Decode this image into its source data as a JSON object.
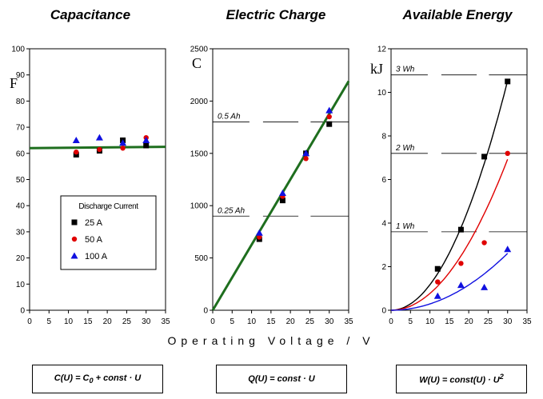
{
  "x_axis_label": "Operating Voltage   /  V",
  "legend": {
    "title": "Discharge Current",
    "entries": [
      {
        "label": "25 A",
        "color": "#000000",
        "marker": "square"
      },
      {
        "label": "50 A",
        "color": "#e00000",
        "marker": "circle"
      },
      {
        "label": "100 A",
        "color": "#1010e0",
        "marker": "triangle"
      }
    ]
  },
  "formulas": [
    {
      "text": "C(U) = C0 + const · U"
    },
    {
      "text": "Q(U) = const · U"
    },
    {
      "text": "W(U) = const(U) · U2"
    }
  ],
  "chart_data": [
    {
      "type": "scatter",
      "title": "Capacitance",
      "ylabel": "F",
      "xlim": [
        0,
        35
      ],
      "ylim": [
        0,
        100
      ],
      "xticks": [
        0,
        5,
        10,
        15,
        20,
        25,
        30,
        35
      ],
      "yticks": [
        0,
        10,
        20,
        30,
        40,
        50,
        60,
        70,
        80,
        90,
        100
      ],
      "series": [
        {
          "name": "25 A",
          "x": [
            12,
            18,
            24,
            30
          ],
          "y": [
            59.5,
            61,
            65,
            63
          ]
        },
        {
          "name": "50 A",
          "x": [
            12,
            18,
            24,
            30
          ],
          "y": [
            60.5,
            61.5,
            62,
            66
          ]
        },
        {
          "name": "100 A",
          "x": [
            12,
            18,
            24,
            30
          ],
          "y": [
            65,
            66,
            64,
            65
          ]
        }
      ],
      "fit_line": {
        "x": [
          0,
          35
        ],
        "y": [
          62,
          62.5
        ],
        "color": "#1e6e1e"
      }
    },
    {
      "type": "scatter",
      "title": "Electric Charge",
      "ylabel": "C",
      "xlim": [
        0,
        35
      ],
      "ylim": [
        0,
        2500
      ],
      "xticks": [
        0,
        5,
        10,
        15,
        20,
        25,
        30,
        35
      ],
      "yticks": [
        0,
        500,
        1000,
        1500,
        2000,
        2500
      ],
      "series": [
        {
          "name": "25 A",
          "x": [
            12,
            18,
            24,
            30
          ],
          "y": [
            680,
            1050,
            1500,
            1780
          ]
        },
        {
          "name": "50 A",
          "x": [
            12,
            18,
            24,
            30
          ],
          "y": [
            700,
            1090,
            1450,
            1850
          ]
        },
        {
          "name": "100 A",
          "x": [
            12,
            18,
            24,
            30
          ],
          "y": [
            740,
            1120,
            1500,
            1910
          ]
        }
      ],
      "fit_line": {
        "x": [
          0,
          35
        ],
        "y": [
          0,
          2190
        ],
        "color": "#1e6e1e"
      },
      "reference_lines": [
        {
          "label": "0.5 Ah",
          "value": 1800
        },
        {
          "label": "0.25 Ah",
          "value": 900
        }
      ]
    },
    {
      "type": "scatter",
      "title": "Available Energy",
      "ylabel": "kJ",
      "xlim": [
        0,
        35
      ],
      "ylim": [
        0,
        12
      ],
      "xticks": [
        0,
        5,
        10,
        15,
        20,
        25,
        30,
        35
      ],
      "yticks": [
        0,
        2,
        4,
        6,
        8,
        10,
        12
      ],
      "series": [
        {
          "name": "25 A",
          "x": [
            12,
            18,
            24,
            30
          ],
          "y": [
            1.9,
            3.7,
            7.05,
            10.5
          ],
          "curve": {
            "a": 0.0117,
            "color": "#000000"
          }
        },
        {
          "name": "50 A",
          "x": [
            12,
            18,
            24,
            30
          ],
          "y": [
            1.3,
            2.15,
            3.1,
            7.2
          ],
          "curve": {
            "a": 0.0077,
            "color": "#e00000"
          }
        },
        {
          "name": "100 A",
          "x": [
            12,
            18,
            24,
            30
          ],
          "y": [
            0.65,
            1.15,
            1.05,
            2.8
          ],
          "curve": {
            "a": 0.0029,
            "color": "#1010e0"
          }
        }
      ],
      "reference_lines": [
        {
          "label": "3 Wh",
          "value": 10.8
        },
        {
          "label": "2 Wh",
          "value": 7.2
        },
        {
          "label": "1 Wh",
          "value": 3.6
        }
      ]
    }
  ]
}
